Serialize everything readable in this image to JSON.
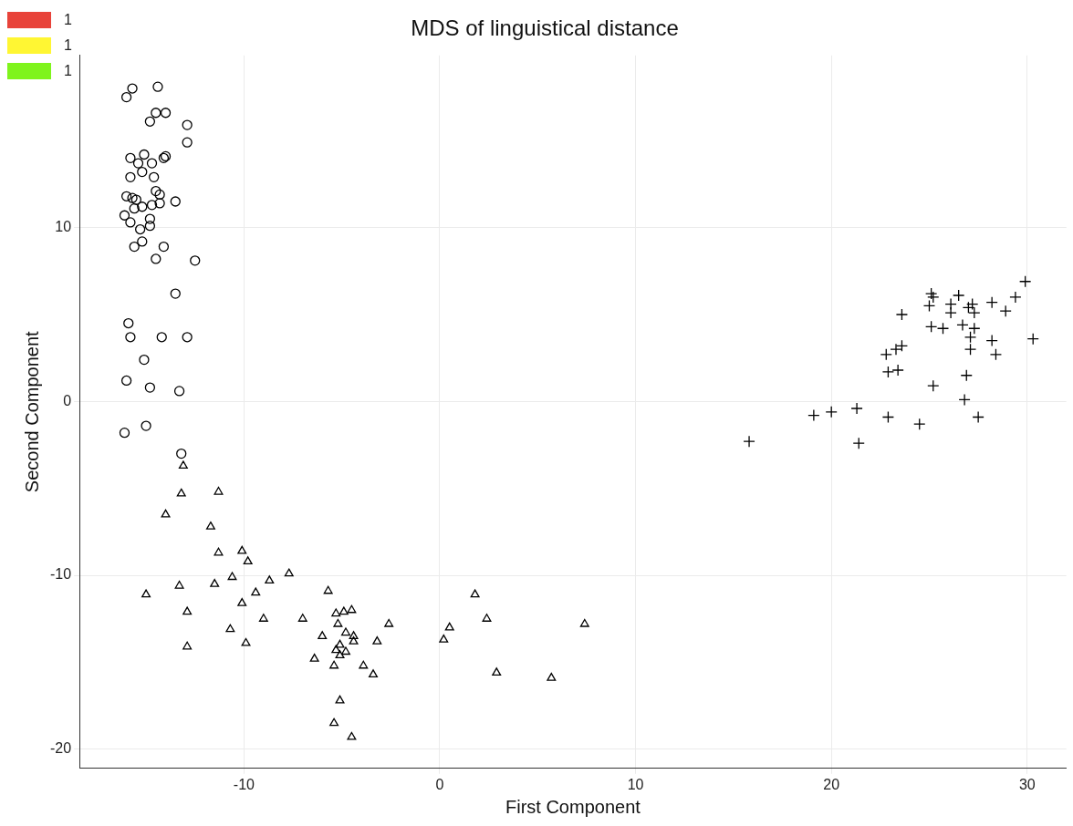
{
  "chart_data": {
    "type": "scatter",
    "title": "MDS of linguistical distance",
    "xlabel": "First Component",
    "ylabel": "Second Component",
    "xlim": [
      -18.4,
      32
    ],
    "xticks": [
      -10,
      0,
      10,
      20,
      30
    ],
    "ylim": [
      -21.1,
      19.9
    ],
    "yticks": [
      -20,
      -10,
      0,
      10
    ],
    "grid": true,
    "legend": "top left",
    "series": [
      {
        "color": "#000000",
        "marker": "circle",
        "x": [
          -15.7,
          -14.4,
          -16.0,
          -14.5,
          -14.0,
          -14.8,
          -12.9,
          -12.9,
          -15.1,
          -15.8,
          -14.0,
          -14.1,
          -15.4,
          -14.7,
          -15.2,
          -15.8,
          -14.6,
          -14.5,
          -14.3,
          -16.0,
          -15.7,
          -15.5,
          -13.5,
          -15.6,
          -15.2,
          -14.7,
          -14.3,
          -16.1,
          -14.8,
          -15.8,
          -14.8,
          -15.3,
          -15.2,
          -15.6,
          -14.1,
          -14.5,
          -12.5,
          -13.5,
          -15.9,
          -15.8,
          -14.2,
          -12.9,
          -15.1,
          -16.0,
          -14.8,
          -13.3,
          -15.0,
          -16.1,
          -13.2
        ],
        "values": [
          18.0,
          18.1,
          17.5,
          16.6,
          16.6,
          16.1,
          15.9,
          14.9,
          14.2,
          14.0,
          14.1,
          14.0,
          13.7,
          13.7,
          13.2,
          12.9,
          12.9,
          12.1,
          11.9,
          11.8,
          11.7,
          11.6,
          11.5,
          11.1,
          11.2,
          11.3,
          11.4,
          10.7,
          10.5,
          10.3,
          10.1,
          9.9,
          9.2,
          8.9,
          8.9,
          8.2,
          8.1,
          6.2,
          4.5,
          3.7,
          3.7,
          3.7,
          2.4,
          1.2,
          0.8,
          0.6,
          -1.4,
          -1.8,
          -3.0
        ]
      },
      {
        "color": "#000000",
        "marker": "triangle",
        "x": [
          -13.1,
          -13.2,
          -11.3,
          -14.0,
          -11.7,
          -11.3,
          -10.1,
          -9.8,
          -10.6,
          -7.7,
          -8.7,
          -13.3,
          -11.5,
          -15.0,
          -9.4,
          -5.7,
          -10.1,
          -12.9,
          -9.0,
          -7.0,
          -5.3,
          -4.9,
          -4.5,
          -10.7,
          -5.2,
          -6.0,
          -4.8,
          -2.6,
          1.8,
          2.4,
          7.4,
          0.5,
          0.2,
          -4.4,
          -4.4,
          -3.2,
          -5.1,
          -5.3,
          -4.8,
          -5.1,
          -6.4,
          -5.4,
          -3.9,
          -3.4,
          2.9,
          5.7,
          -5.1,
          -5.4,
          -4.5,
          -9.9,
          -12.9
        ],
        "values": [
          -3.7,
          -5.3,
          -5.2,
          -6.5,
          -7.2,
          -8.7,
          -8.6,
          -9.2,
          -10.1,
          -9.9,
          -10.3,
          -10.6,
          -10.5,
          -11.1,
          -11.0,
          -10.9,
          -11.6,
          -12.1,
          -12.5,
          -12.5,
          -12.2,
          -12.1,
          -12.0,
          -13.1,
          -12.8,
          -13.5,
          -13.3,
          -12.8,
          -11.1,
          -12.5,
          -12.8,
          -13.0,
          -13.7,
          -13.5,
          -13.8,
          -13.8,
          -14.0,
          -14.3,
          -14.4,
          -14.6,
          -14.8,
          -15.2,
          -15.2,
          -15.7,
          -15.6,
          -15.9,
          -17.2,
          -18.5,
          -19.3,
          -13.9,
          -14.1
        ]
      },
      {
        "color": "#000000",
        "marker": "cross",
        "x": [
          29.9,
          29.4,
          25.1,
          25.2,
          26.5,
          25.0,
          26.1,
          27.2,
          27.0,
          28.2,
          28.9,
          26.1,
          27.3,
          23.6,
          25.1,
          25.7,
          26.7,
          27.3,
          27.1,
          30.3,
          28.2,
          27.1,
          28.4,
          23.6,
          23.3,
          22.8,
          22.9,
          23.4,
          26.9,
          25.2,
          26.8,
          27.5,
          19.1,
          20.0,
          21.3,
          22.9,
          24.5,
          21.4,
          15.8
        ],
        "values": [
          6.9,
          6.0,
          6.2,
          6.0,
          6.1,
          5.5,
          5.6,
          5.6,
          5.4,
          5.7,
          5.2,
          5.1,
          5.1,
          5.0,
          4.3,
          4.2,
          4.4,
          4.2,
          3.7,
          3.6,
          3.5,
          3.0,
          2.7,
          3.2,
          3.0,
          2.7,
          1.7,
          1.8,
          1.5,
          0.9,
          0.1,
          -0.9,
          -0.8,
          -0.6,
          -0.4,
          -0.9,
          -1.3,
          -2.4,
          -2.3
        ]
      },
      {
        "name": "1",
        "color": "#e8433a"
      },
      {
        "name": "1",
        "color": "#fff633"
      },
      {
        "name": "1",
        "color": "#7ff41c"
      }
    ]
  }
}
